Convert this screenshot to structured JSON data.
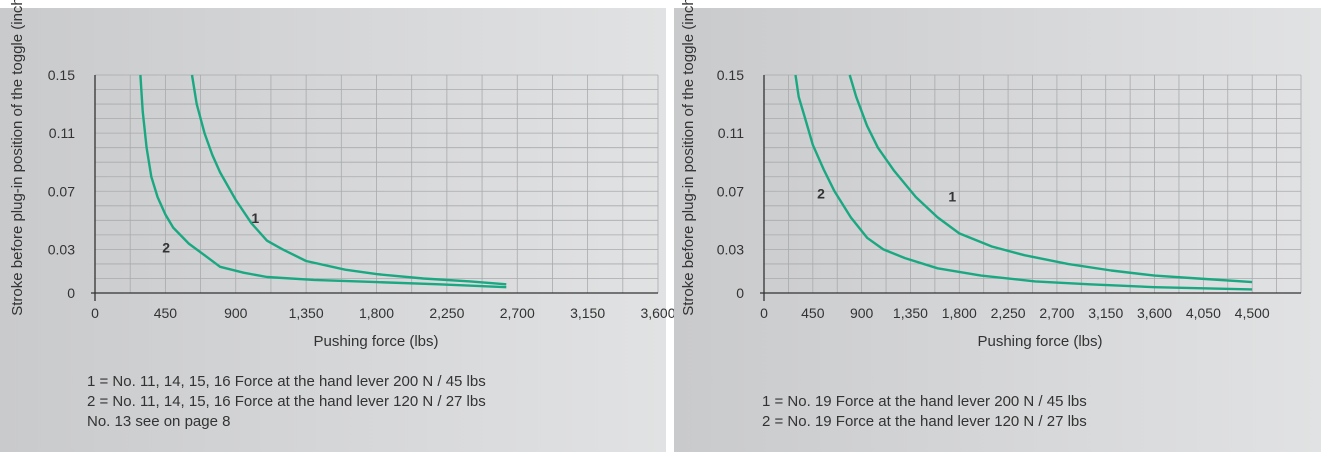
{
  "colors": {
    "curve": "#1aa882",
    "grid": "#a9aaac",
    "axis": "#333333",
    "panel_left": "#c9cacc",
    "panel_right": "#e1e2e3"
  },
  "chart_data": [
    {
      "type": "line",
      "xlabel": "Pushing force (lbs)",
      "ylabel": "Stroke before plug-in position of the toggle (inch)",
      "xlim": [
        0,
        3600
      ],
      "ylim": [
        0,
        0.15
      ],
      "x_ticks": [
        0,
        450,
        900,
        1350,
        1800,
        2250,
        2700,
        3150,
        3600
      ],
      "x_tick_labels": [
        "0",
        "450",
        "900",
        "1,350",
        "1,800",
        "2,250",
        "2,700",
        "3,150",
        "3,600"
      ],
      "y_ticks": [
        0,
        0.03,
        0.07,
        0.11,
        0.15
      ],
      "y_tick_labels": [
        "0",
        "0.03",
        "0.07",
        "0.11",
        "0.15"
      ],
      "grid_x_step": 225,
      "grid_y_step": 0.01,
      "grid": true,
      "series": [
        {
          "label": "1",
          "label_at": [
            1000,
            0.048
          ],
          "points": [
            [
              620,
              0.15
            ],
            [
              650,
              0.13
            ],
            [
              700,
              0.11
            ],
            [
              750,
              0.095
            ],
            [
              800,
              0.083
            ],
            [
              900,
              0.064
            ],
            [
              1000,
              0.048
            ],
            [
              1100,
              0.036
            ],
            [
              1200,
              0.03
            ],
            [
              1350,
              0.022
            ],
            [
              1600,
              0.016
            ],
            [
              1800,
              0.013
            ],
            [
              2100,
              0.01
            ],
            [
              2400,
              0.008
            ],
            [
              2630,
              0.006
            ]
          ]
        },
        {
          "label": "2",
          "label_at": [
            430,
            0.028
          ],
          "points": [
            [
              290,
              0.15
            ],
            [
              305,
              0.125
            ],
            [
              330,
              0.1
            ],
            [
              360,
              0.08
            ],
            [
              400,
              0.066
            ],
            [
              450,
              0.054
            ],
            [
              500,
              0.045
            ],
            [
              600,
              0.034
            ],
            [
              700,
              0.026
            ],
            [
              800,
              0.018
            ],
            [
              950,
              0.014
            ],
            [
              1100,
              0.011
            ],
            [
              1400,
              0.009
            ],
            [
              1800,
              0.0075
            ],
            [
              2200,
              0.006
            ],
            [
              2630,
              0.004
            ]
          ]
        }
      ],
      "legend": [
        "1 = No. 11, 14, 15, 16 Force at the hand lever 200 N / 45 lbs",
        "2 = No. 11, 14, 15, 16 Force at the hand lever 120 N / 27 lbs",
        "No. 13 see on page 8"
      ]
    },
    {
      "type": "line",
      "xlabel": "Pushing force (lbs)",
      "ylabel": "Stroke before plug-in position of the toggle (inch)",
      "xlim": [
        0,
        4950
      ],
      "ylim": [
        0,
        0.15
      ],
      "x_ticks": [
        0,
        450,
        900,
        1350,
        1800,
        2250,
        2700,
        3150,
        3600,
        4050,
        4500
      ],
      "x_tick_labels": [
        "0",
        "450",
        "900",
        "1,350",
        "1,800",
        "2,250",
        "2,700",
        "3,150",
        "3,600",
        "4,050",
        "4,500"
      ],
      "y_ticks": [
        0,
        0.03,
        0.07,
        0.11,
        0.15
      ],
      "y_tick_labels": [
        "0",
        "0.03",
        "0.07",
        "0.11",
        "0.15"
      ],
      "grid_x_step": 225,
      "grid_y_step": 0.01,
      "grid": true,
      "series": [
        {
          "label": "1",
          "label_at": [
            1700,
            0.063
          ],
          "points": [
            [
              790,
              0.15
            ],
            [
              850,
              0.135
            ],
            [
              950,
              0.115
            ],
            [
              1050,
              0.1
            ],
            [
              1200,
              0.084
            ],
            [
              1400,
              0.066
            ],
            [
              1600,
              0.052
            ],
            [
              1800,
              0.041
            ],
            [
              2100,
              0.032
            ],
            [
              2400,
              0.026
            ],
            [
              2800,
              0.02
            ],
            [
              3200,
              0.0155
            ],
            [
              3600,
              0.012
            ],
            [
              4000,
              0.01
            ],
            [
              4500,
              0.0075
            ]
          ]
        },
        {
          "label": "2",
          "label_at": [
            490,
            0.065
          ],
          "points": [
            [
              290,
              0.15
            ],
            [
              320,
              0.135
            ],
            [
              380,
              0.12
            ],
            [
              450,
              0.102
            ],
            [
              550,
              0.085
            ],
            [
              650,
              0.07
            ],
            [
              800,
              0.052
            ],
            [
              950,
              0.038
            ],
            [
              1100,
              0.03
            ],
            [
              1300,
              0.024
            ],
            [
              1600,
              0.017
            ],
            [
              2000,
              0.012
            ],
            [
              2500,
              0.008
            ],
            [
              3000,
              0.006
            ],
            [
              3600,
              0.004
            ],
            [
              4500,
              0.0025
            ]
          ]
        }
      ],
      "legend": [
        "1 = No. 19 Force at the hand lever 200 N / 45 lbs",
        "2 = No. 19 Force at the hand lever 120 N / 27 lbs"
      ]
    }
  ]
}
